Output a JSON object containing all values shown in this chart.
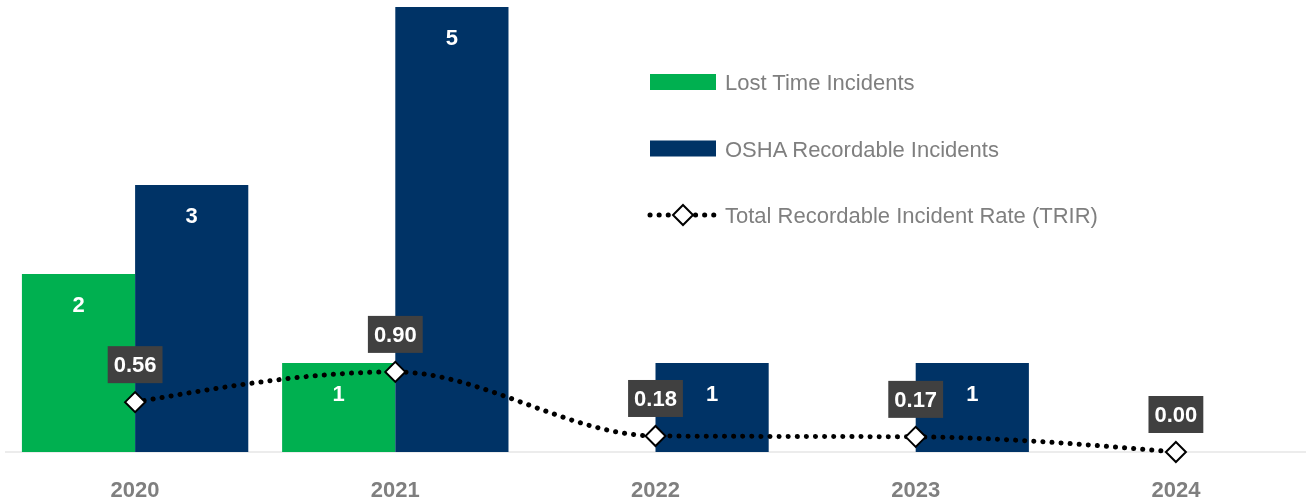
{
  "chart_data": {
    "type": "bar",
    "categories": [
      "2020",
      "2021",
      "2022",
      "2023",
      "2024"
    ],
    "series": [
      {
        "name": "Lost Time Incidents",
        "color": "#00b050",
        "values": [
          2,
          1,
          null,
          null,
          null
        ]
      },
      {
        "name": "OSHA Recordable Incidents",
        "color": "#003366",
        "values": [
          3,
          5,
          1,
          1,
          null
        ]
      },
      {
        "name": "Total Recordable Incident Rate (TRIR)",
        "type": "line",
        "color": "#000000",
        "values": [
          0.56,
          0.9,
          0.18,
          0.17,
          0.0
        ],
        "value_labels": [
          "0.56",
          "0.90",
          "0.18",
          "0.17",
          "0.00"
        ],
        "marker": "diamond",
        "line_style": "dotted"
      }
    ],
    "ylim": [
      0,
      5
    ],
    "data_labels": true,
    "legend": "top right",
    "tick_labels": "x"
  }
}
